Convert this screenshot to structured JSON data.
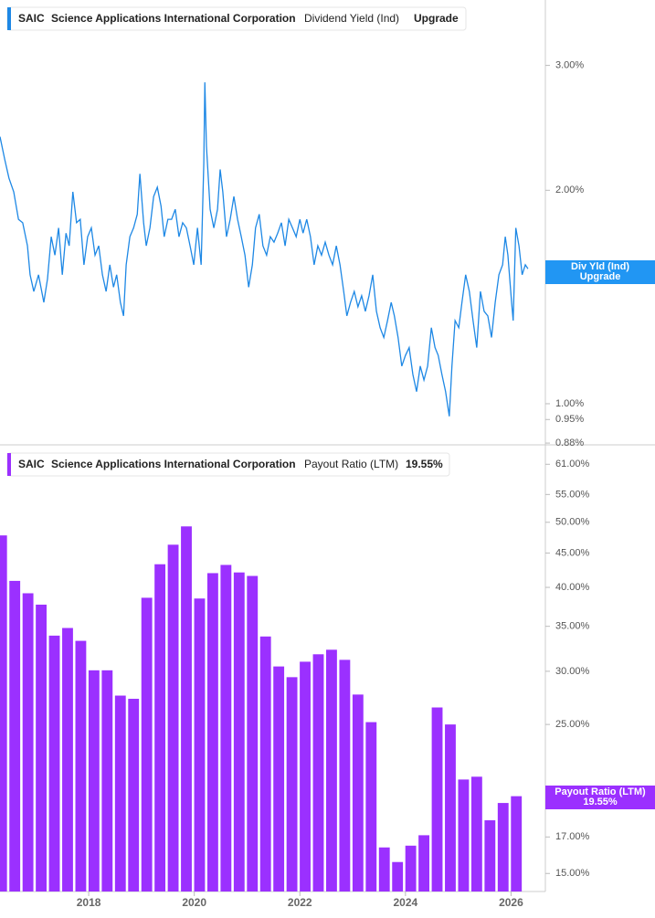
{
  "chart_data": [
    {
      "type": "line",
      "ticker": "SAIC",
      "company": "Science Applications International Corporation",
      "metric": "Dividend Yield (Ind)",
      "metric_value": "Upgrade",
      "axis_label": "Div Yld (Ind)",
      "axis_value": "Upgrade",
      "log_scale": true,
      "xlim": [
        2016.32,
        2026.65
      ],
      "ylim": [
        0.875,
        3.71
      ],
      "yticks": [
        {
          "value": 3,
          "label": "3.00%"
        },
        {
          "value": 2,
          "label": "2.00%"
        },
        {
          "value": 1,
          "label": "1.00%"
        },
        {
          "value": 0.95,
          "label": "0.95%"
        },
        {
          "value": 0.88,
          "label": "0.88%"
        }
      ],
      "x": [
        2016.32,
        2016.41,
        2016.49,
        2016.58,
        2016.67,
        2016.75,
        2016.84,
        2016.89,
        2016.96,
        2017.05,
        2017.15,
        2017.22,
        2017.29,
        2017.36,
        2017.43,
        2017.5,
        2017.57,
        2017.63,
        2017.7,
        2017.77,
        2017.84,
        2017.91,
        2017.98,
        2018.05,
        2018.12,
        2018.19,
        2018.26,
        2018.33,
        2018.4,
        2018.47,
        2018.53,
        2018.6,
        2018.66,
        2018.71,
        2018.78,
        2018.85,
        2018.92,
        2018.97,
        2019.04,
        2019.09,
        2019.16,
        2019.23,
        2019.3,
        2019.37,
        2019.43,
        2019.5,
        2019.57,
        2019.64,
        2019.71,
        2019.78,
        2019.85,
        2019.92,
        2019.99,
        2020.06,
        2020.13,
        2020.18,
        2020.2,
        2020.23,
        2020.3,
        2020.37,
        2020.44,
        2020.49,
        2020.54,
        2020.61,
        2020.68,
        2020.75,
        2020.82,
        2020.89,
        2020.96,
        2021.03,
        2021.1,
        2021.16,
        2021.23,
        2021.3,
        2021.37,
        2021.44,
        2021.51,
        2021.58,
        2021.65,
        2021.72,
        2021.79,
        2021.86,
        2021.93,
        2022.0,
        2022.06,
        2022.13,
        2022.2,
        2022.27,
        2022.34,
        2022.41,
        2022.48,
        2022.55,
        2022.62,
        2022.69,
        2022.76,
        2022.83,
        2022.89,
        2022.96,
        2023.03,
        2023.1,
        2023.17,
        2023.24,
        2023.31,
        2023.38,
        2023.45,
        2023.52,
        2023.59,
        2023.66,
        2023.73,
        2023.79,
        2023.86,
        2023.93,
        2024.0,
        2024.07,
        2024.14,
        2024.21,
        2024.28,
        2024.35,
        2024.42,
        2024.49,
        2024.56,
        2024.62,
        2024.69,
        2024.76,
        2024.83,
        2024.88,
        2024.94,
        2025.01,
        2025.07,
        2025.14,
        2025.21,
        2025.28,
        2025.35,
        2025.42,
        2025.49,
        2025.56,
        2025.63,
        2025.7,
        2025.77,
        2025.84,
        2025.89,
        2025.94,
        2026.01,
        2026.04,
        2026.09,
        2026.15,
        2026.21,
        2026.27,
        2026.32
      ],
      "series": [
        {
          "name": "Dividend Yield (Ind)",
          "color": "#1e88e5",
          "values": [
            2.38,
            2.21,
            2.08,
            1.99,
            1.82,
            1.8,
            1.67,
            1.52,
            1.44,
            1.52,
            1.39,
            1.5,
            1.72,
            1.62,
            1.77,
            1.52,
            1.74,
            1.67,
            1.99,
            1.8,
            1.82,
            1.57,
            1.72,
            1.77,
            1.62,
            1.67,
            1.52,
            1.44,
            1.57,
            1.46,
            1.52,
            1.39,
            1.33,
            1.57,
            1.72,
            1.77,
            1.85,
            2.11,
            1.8,
            1.67,
            1.77,
            1.96,
            2.02,
            1.9,
            1.72,
            1.82,
            1.82,
            1.88,
            1.72,
            1.8,
            1.77,
            1.67,
            1.57,
            1.77,
            1.57,
            2.18,
            2.84,
            2.31,
            1.88,
            1.77,
            1.88,
            2.14,
            1.99,
            1.72,
            1.82,
            1.96,
            1.82,
            1.72,
            1.62,
            1.46,
            1.57,
            1.77,
            1.85,
            1.67,
            1.62,
            1.72,
            1.69,
            1.74,
            1.8,
            1.67,
            1.82,
            1.77,
            1.72,
            1.82,
            1.74,
            1.82,
            1.72,
            1.57,
            1.67,
            1.62,
            1.69,
            1.62,
            1.57,
            1.67,
            1.57,
            1.44,
            1.33,
            1.39,
            1.44,
            1.37,
            1.42,
            1.35,
            1.42,
            1.52,
            1.35,
            1.28,
            1.24,
            1.31,
            1.39,
            1.33,
            1.24,
            1.13,
            1.17,
            1.2,
            1.1,
            1.04,
            1.13,
            1.08,
            1.13,
            1.28,
            1.2,
            1.17,
            1.1,
            1.04,
            0.96,
            1.13,
            1.31,
            1.28,
            1.39,
            1.52,
            1.44,
            1.31,
            1.2,
            1.44,
            1.35,
            1.33,
            1.24,
            1.39,
            1.52,
            1.57,
            1.72,
            1.62,
            1.39,
            1.31,
            1.77,
            1.67,
            1.52,
            1.57,
            1.55
          ]
        }
      ]
    },
    {
      "type": "bar",
      "ticker": "SAIC",
      "company": "Science Applications International Corporation",
      "metric": "Payout Ratio (LTM)",
      "metric_value": "19.55%",
      "axis_label": "Payout Ratio (LTM)",
      "axis_value": "19.55%",
      "log_scale": true,
      "xlim": [
        2016.32,
        2026.65
      ],
      "ylim": [
        14.1,
        65
      ],
      "xticks": [
        2018,
        2020,
        2022,
        2024,
        2026
      ],
      "yticks": [
        {
          "value": 61,
          "label": "61.00%"
        },
        {
          "value": 55,
          "label": "55.00%"
        },
        {
          "value": 50,
          "label": "50.00%"
        },
        {
          "value": 45,
          "label": "45.00%"
        },
        {
          "value": 40,
          "label": "40.00%"
        },
        {
          "value": 35,
          "label": "35.00%"
        },
        {
          "value": 30,
          "label": "30.00%"
        },
        {
          "value": 25,
          "label": "25.00%"
        },
        {
          "value": 17,
          "label": "17.00%"
        },
        {
          "value": 15,
          "label": "15.00%"
        }
      ],
      "x": [
        2016.35,
        2016.6,
        2016.85,
        2017.1,
        2017.35,
        2017.6,
        2017.85,
        2018.1,
        2018.35,
        2018.6,
        2018.85,
        2019.1,
        2019.35,
        2019.6,
        2019.85,
        2020.1,
        2020.35,
        2020.6,
        2020.85,
        2021.1,
        2021.35,
        2021.6,
        2021.85,
        2022.1,
        2022.35,
        2022.6,
        2022.85,
        2023.1,
        2023.35,
        2023.6,
        2023.85,
        2024.1,
        2024.35,
        2024.6,
        2024.85,
        2025.1,
        2025.35,
        2025.6,
        2025.85,
        2026.1
      ],
      "series": [
        {
          "name": "Payout Ratio (LTM)",
          "color": "#9b30ff",
          "values": [
            47.8,
            40.9,
            39.2,
            37.7,
            33.9,
            34.8,
            33.3,
            30.1,
            30.1,
            27.6,
            27.3,
            38.6,
            43.3,
            46.3,
            49.3,
            38.5,
            42.0,
            43.2,
            42.1,
            41.6,
            33.8,
            30.5,
            29.4,
            31.0,
            31.8,
            32.3,
            31.2,
            27.7,
            25.2,
            16.4,
            15.6,
            16.5,
            17.1,
            26.5,
            25.0,
            20.7,
            20.9,
            18.0,
            19.1,
            19.55
          ]
        }
      ]
    }
  ]
}
